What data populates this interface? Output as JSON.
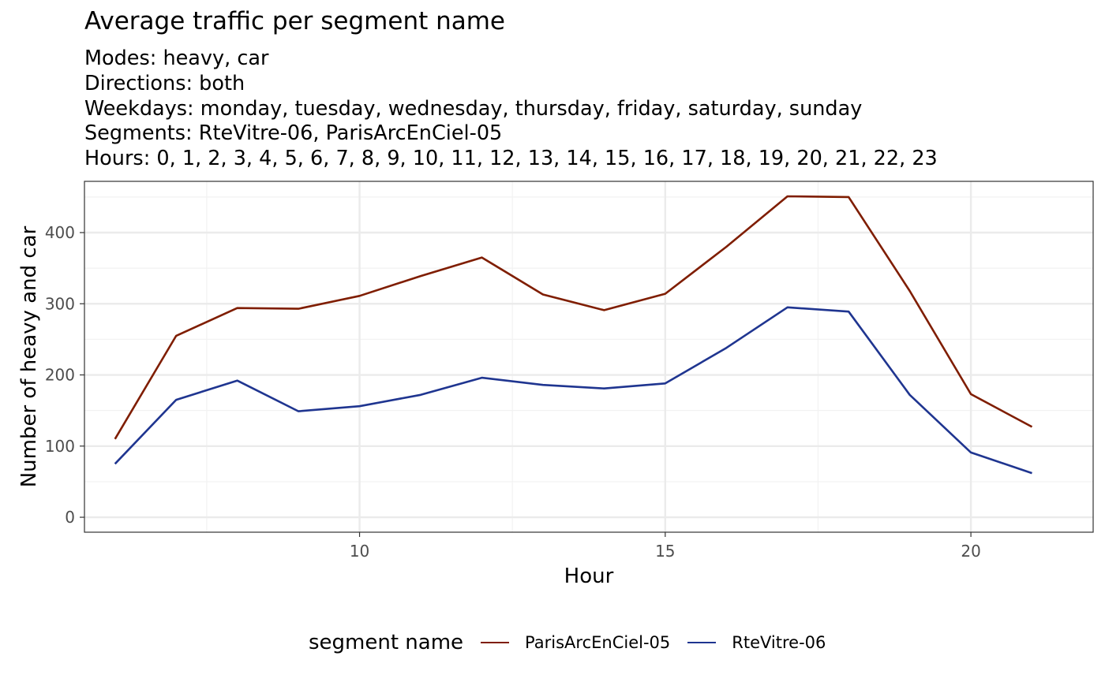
{
  "chart_data": {
    "type": "line",
    "title": "Average traffic per segment name",
    "subtitle_lines": [
      "Modes: heavy, car",
      "Directions: both",
      "Weekdays: monday, tuesday, wednesday, thursday, friday, saturday, sunday",
      "Segments: RteVitre-06, ParisArcEnCiel-05",
      "Hours: 0, 1, 2, 3, 4, 5, 6, 7, 8, 9, 10, 11, 12, 13, 14, 15, 16, 17, 18, 19, 20, 21, 22, 23"
    ],
    "xlabel": "Hour",
    "ylabel": "Number of heavy and car",
    "x": [
      6,
      7,
      8,
      9,
      10,
      11,
      12,
      13,
      14,
      15,
      16,
      17,
      18,
      19,
      20,
      21
    ],
    "series": [
      {
        "name": "ParisArcEnCiel-05",
        "color": "#7f1d00",
        "values": [
          110,
          255,
          294,
          293,
          311,
          339,
          365,
          313,
          291,
          314,
          380,
          451,
          450,
          318,
          173,
          127
        ]
      },
      {
        "name": "RteVitre-06",
        "color": "#1f3590",
        "values": [
          75,
          165,
          192,
          149,
          156,
          172,
          196,
          186,
          181,
          188,
          238,
          295,
          289,
          172,
          91,
          62
        ]
      }
    ],
    "xlim": [
      5.5,
      22
    ],
    "ylim": [
      -21,
      472
    ],
    "x_ticks": [
      10,
      15,
      20
    ],
    "y_ticks": [
      0,
      100,
      200,
      300,
      400
    ],
    "grid": true,
    "legend": {
      "title": "segment name",
      "position": "bottom"
    }
  }
}
